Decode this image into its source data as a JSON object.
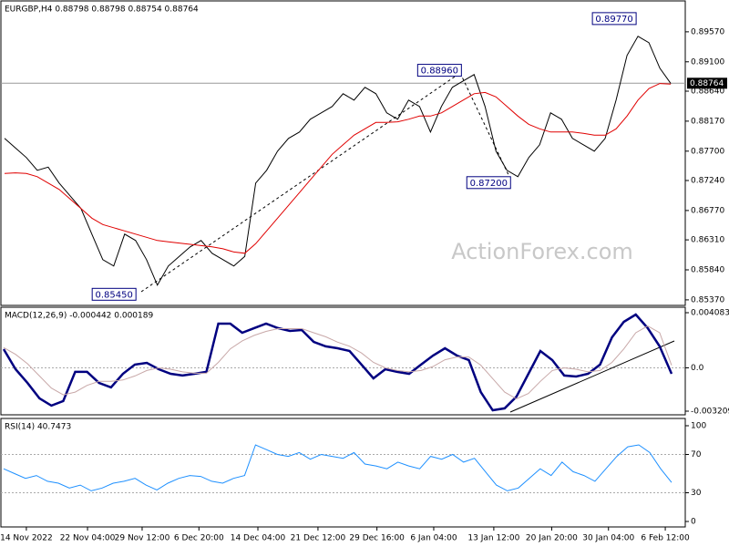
{
  "chart_data": [
    {
      "type": "line",
      "title": "EURGBP,H4  0.88798 0.88798 0.88754 0.88764",
      "watermark": "ActionForex.com",
      "ylim": [
        0.85283,
        0.90054
      ],
      "yticks": [
        {
          "value": 0.8957,
          "label": "0.89570"
        },
        {
          "value": 0.891,
          "label": "0.89100"
        },
        {
          "value": 0.8864,
          "label": "0.88640"
        },
        {
          "value": 0.8817,
          "label": "0.88170"
        },
        {
          "value": 0.877,
          "label": "0.87700"
        },
        {
          "value": 0.8724,
          "label": "0.87240"
        },
        {
          "value": 0.8677,
          "label": "0.86770"
        },
        {
          "value": 0.8631,
          "label": "0.86310"
        },
        {
          "value": 0.8584,
          "label": "0.85840"
        },
        {
          "value": 0.8537,
          "label": "0.85370"
        }
      ],
      "xlim": [
        -0.33,
        62.33
      ],
      "xticks": [
        {
          "value": 2,
          "label": "14 Nov 2022"
        },
        {
          "value": 7.6,
          "label": "22 Nov 04:00"
        },
        {
          "value": 12.6,
          "label": "29 Nov 12:00"
        },
        {
          "value": 17.8,
          "label": "6 Dec 20:00"
        },
        {
          "value": 23.2,
          "label": "14 Dec 04:00"
        },
        {
          "value": 28.7,
          "label": "21 Dec 12:00"
        },
        {
          "value": 34.1,
          "label": "29 Dec 16:00"
        },
        {
          "value": 39.3,
          "label": "6 Jan 04:00"
        },
        {
          "value": 44.8,
          "label": "13 Jan 12:00"
        },
        {
          "value": 50.1,
          "label": "20 Jan 20:00"
        },
        {
          "value": 55.3,
          "label": "30 Jan 04:00"
        },
        {
          "value": 60.5,
          "label": "6 Feb 12:00"
        }
      ],
      "current_price": 0.88764,
      "annotations": [
        {
          "label": "0.89770",
          "x": 58,
          "value": 0.8977
        },
        {
          "label": "0.88960",
          "x": 42,
          "value": 0.8896
        },
        {
          "label": "0.87200",
          "x": 46.5,
          "value": 0.872
        },
        {
          "label": "0.85450",
          "x": 12.2,
          "value": 0.8545
        }
      ],
      "series": [
        {
          "color": "#000000",
          "width": 1,
          "values": [
            0.879,
            0.8775,
            0.876,
            0.874,
            0.8745,
            0.872,
            0.87,
            0.868,
            0.864,
            0.86,
            0.859,
            0.864,
            0.863,
            0.86,
            0.856,
            0.859,
            0.8605,
            0.862,
            0.863,
            0.861,
            0.86,
            0.859,
            0.8605,
            0.872,
            0.874,
            0.877,
            0.879,
            0.88,
            0.882,
            0.883,
            0.884,
            0.886,
            0.885,
            0.887,
            0.886,
            0.883,
            0.882,
            0.885,
            0.884,
            0.88,
            0.884,
            0.887,
            0.888,
            0.889,
            0.884,
            0.877,
            0.874,
            0.873,
            0.876,
            0.878,
            0.883,
            0.882,
            0.879,
            0.878,
            0.877,
            0.879,
            0.885,
            0.892,
            0.895,
            0.894,
            0.89,
            0.8876
          ]
        },
        {
          "color": "#e00000",
          "width": 1,
          "values": [
            0.8735,
            0.8736,
            0.8735,
            0.873,
            0.872,
            0.871,
            0.8695,
            0.868,
            0.8665,
            0.8655,
            0.865,
            0.8645,
            0.864,
            0.8635,
            0.863,
            0.8628,
            0.8626,
            0.8624,
            0.8622,
            0.862,
            0.8617,
            0.8612,
            0.861,
            0.8625,
            0.8645,
            0.8665,
            0.8685,
            0.8705,
            0.8725,
            0.8745,
            0.8765,
            0.878,
            0.8795,
            0.8805,
            0.8815,
            0.8815,
            0.8816,
            0.882,
            0.8825,
            0.8825,
            0.883,
            0.884,
            0.885,
            0.886,
            0.8862,
            0.8855,
            0.884,
            0.8825,
            0.8812,
            0.8805,
            0.88,
            0.88,
            0.88,
            0.8798,
            0.8795,
            0.8795,
            0.8805,
            0.8825,
            0.885,
            0.8868,
            0.8876,
            0.8875
          ]
        }
      ]
    },
    {
      "type": "line",
      "title": "MACD(12,26,9) -0.000442 0.000189",
      "ylim": [
        -0.003479,
        0.004488
      ],
      "yticks": [
        0.004083,
        {
          "value": 0,
          "label": "0.0"
        },
        -0.003209
      ],
      "levels": [
        0
      ],
      "series": [
        {
          "color": "#000080",
          "width": 2.5,
          "values": [
            0.00138,
            -0.0001,
            -0.00112,
            -0.00226,
            -0.0028,
            -0.00246,
            -0.0003,
            -0.0003,
            -0.00112,
            -0.00145,
            -0.00044,
            0.00024,
            0.00037,
            -0.0001,
            -0.00044,
            -0.00057,
            -0.00044,
            -0.0003,
            0.00327,
            0.00327,
            0.0026,
            0.00294,
            0.00327,
            0.00294,
            0.00273,
            0.0028,
            0.00192,
            0.00159,
            0.00145,
            0.00125,
            0.00024,
            -0.00078,
            -0.0001,
            -0.0003,
            -0.00044,
            0.00024,
            0.00091,
            0.00145,
            0.00091,
            0.00057,
            -0.00179,
            -0.00314,
            -0.003,
            -0.00213,
            -0.00044,
            0.00125,
            0.00057,
            -0.00057,
            -0.00064,
            -0.00044,
            0.00024,
            0.00226,
            0.00341,
            0.00395,
            0.00294,
            0.00159,
            -0.000442
          ]
        },
        {
          "color": "#c8a8a8",
          "width": 1,
          "values": [
            0.0015,
            0.001,
            0.0003,
            -0.0006,
            -0.0015,
            -0.002,
            -0.0018,
            -0.0013,
            -0.001,
            -0.001,
            -0.0009,
            -0.0006,
            -0.0002,
            0,
            -0.0001,
            -0.0003,
            -0.0004,
            -0.0004,
            0.0004,
            0.0014,
            0.002,
            0.0024,
            0.0027,
            0.0029,
            0.0029,
            0.0029,
            0.0026,
            0.0023,
            0.0019,
            0.0016,
            0.0011,
            0.0004,
            0,
            -0.0002,
            -0.0003,
            -0.0002,
            0.0001,
            0.0006,
            0.0008,
            0.0008,
            0.0002,
            -0.0008,
            -0.0018,
            -0.0023,
            -0.0019,
            -0.001,
            -0.0002,
            0,
            -0.0001,
            -0.0003,
            -0.0002,
            0.0004,
            0.0014,
            0.0026,
            0.0031,
            0.0026,
            0.000189
          ]
        }
      ]
    },
    {
      "type": "line",
      "title": "RSI(14) 40.7473",
      "ylim": [
        -5.7,
        107.6
      ],
      "yticks": [
        100,
        70,
        30,
        0
      ],
      "levels": [
        70,
        30
      ],
      "series": [
        {
          "color": "#1e90ff",
          "width": 1,
          "values": [
            55,
            50,
            45,
            48,
            42,
            40,
            35,
            38,
            32,
            35,
            40,
            42,
            45,
            38,
            33,
            40,
            45,
            48,
            47,
            42,
            40,
            45,
            48,
            80,
            75,
            70,
            68,
            72,
            65,
            70,
            68,
            66,
            72,
            60,
            58,
            55,
            62,
            58,
            55,
            68,
            65,
            70,
            62,
            66,
            52,
            38,
            32,
            35,
            45,
            55,
            48,
            62,
            52,
            48,
            42,
            55,
            68,
            78,
            80,
            72,
            55,
            40.7473
          ]
        }
      ]
    }
  ]
}
